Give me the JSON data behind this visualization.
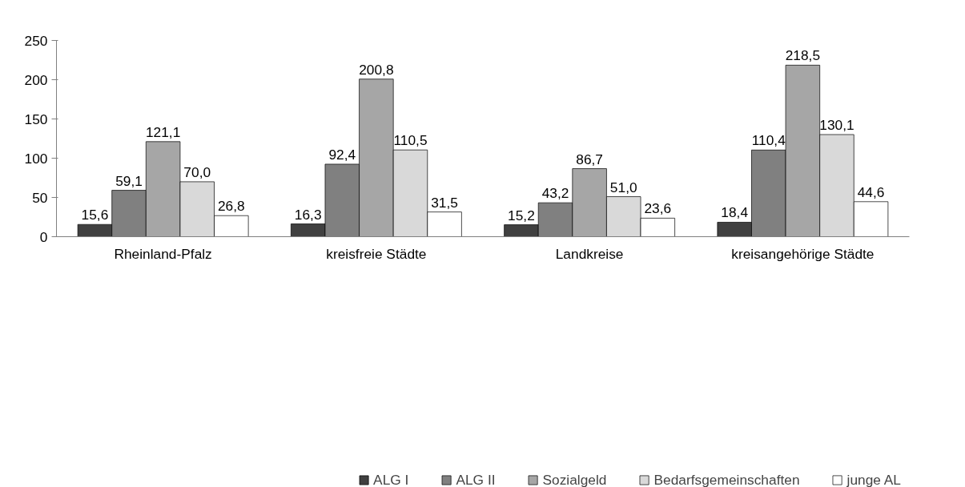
{
  "chart_data": {
    "type": "bar",
    "categories": [
      "Rheinland-Pfalz",
      "kreisfreie Städte",
      "Landkreise",
      "kreisangehörige Städte"
    ],
    "series": [
      {
        "name": "ALG I",
        "color": "#404040",
        "values": [
          15.6,
          16.3,
          15.2,
          18.4
        ],
        "value_labels": [
          "15,6",
          "16,3",
          "15,2",
          "18,4"
        ]
      },
      {
        "name": "ALG II",
        "color": "#808080",
        "values": [
          59.1,
          92.4,
          43.2,
          110.4
        ],
        "value_labels": [
          "59,1",
          "92,4",
          "43,2",
          "110,4"
        ]
      },
      {
        "name": "Sozialgeld",
        "color": "#a6a6a6",
        "values": [
          121.1,
          200.8,
          86.7,
          218.5
        ],
        "value_labels": [
          "121,1",
          "200,8",
          "86,7",
          "218,5"
        ]
      },
      {
        "name": "Bedarfsgemeinschaften",
        "color": "#d9d9d9",
        "values": [
          70.0,
          110.5,
          51.0,
          130.1
        ],
        "value_labels": [
          "70,0",
          "110,5",
          "51,0",
          "130,1"
        ]
      },
      {
        "name": "junge AL",
        "color": "#ffffff",
        "values": [
          26.8,
          31.5,
          23.6,
          44.6
        ],
        "value_labels": [
          "26,8",
          "31,5",
          "23,6",
          "44,6"
        ]
      }
    ],
    "ylim": [
      0,
      250
    ],
    "yticks": [
      0,
      50,
      100,
      150,
      200,
      250
    ],
    "grid": false,
    "legend": "bottom"
  }
}
